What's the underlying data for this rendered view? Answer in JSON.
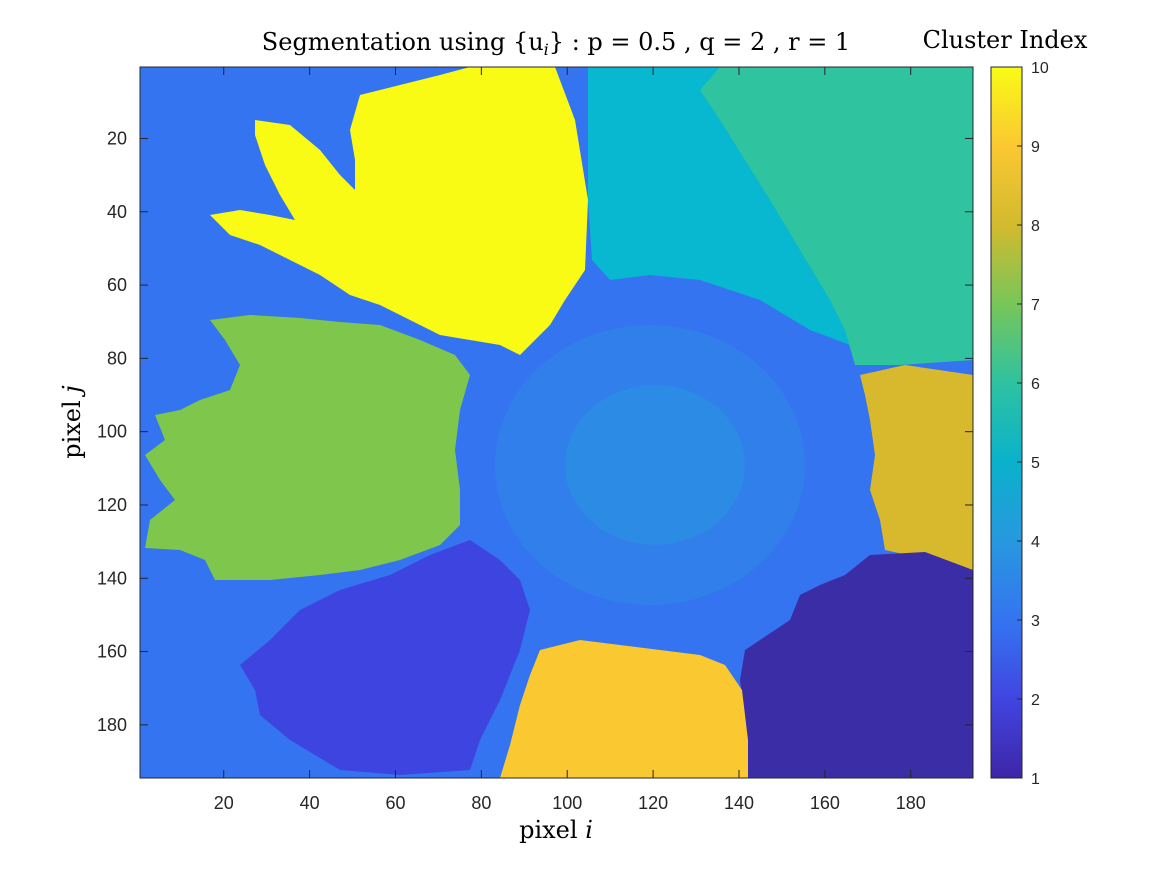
{
  "chart_data": {
    "type": "heatmap",
    "title_prefix": "Segmentation using ",
    "title_math": "{u",
    "title_math_sub": "i",
    "title_math_close": "}",
    "title_suffix": " : p = 0.5 , q = 2 , r = 1",
    "xlabel_text": "pixel ",
    "xlabel_var": "i",
    "ylabel_text": "pixel ",
    "ylabel_var": "j",
    "colorbar_label": "Cluster Index",
    "xlim": [
      0.5,
      194.5
    ],
    "ylim": [
      0.5,
      194.5
    ],
    "y_reversed": true,
    "x_ticks": [
      20,
      40,
      60,
      80,
      100,
      120,
      140,
      160,
      180
    ],
    "y_ticks": [
      20,
      40,
      60,
      80,
      100,
      120,
      140,
      160,
      180
    ],
    "clim": [
      1,
      10
    ],
    "colorbar_ticks": [
      1,
      2,
      3,
      4,
      5,
      6,
      7,
      8,
      9,
      10
    ],
    "colormap": "parula",
    "clusters": [
      {
        "index": 1,
        "color": "#3a2da6",
        "region": "lower-right petal"
      },
      {
        "index": 2,
        "color": "#3d44df",
        "region": "lower-left petal"
      },
      {
        "index": 3,
        "color": "#3474f0",
        "region": "background and flower center"
      },
      {
        "index": 4,
        "color": "#2697df",
        "region": "center speckle"
      },
      {
        "index": 5,
        "color": "#07b8d0",
        "region": "upper-right petal"
      },
      {
        "index": 6,
        "color": "#2fc3a0",
        "region": "far upper-right petal"
      },
      {
        "index": 7,
        "color": "#7fc64c",
        "region": "left petal"
      },
      {
        "index": 8,
        "color": "#d8b82c",
        "region": "right petal"
      },
      {
        "index": 9,
        "color": "#fac831",
        "region": "bottom petal"
      },
      {
        "index": 10,
        "color": "#f9fb15",
        "region": "upper-left petal"
      }
    ]
  }
}
